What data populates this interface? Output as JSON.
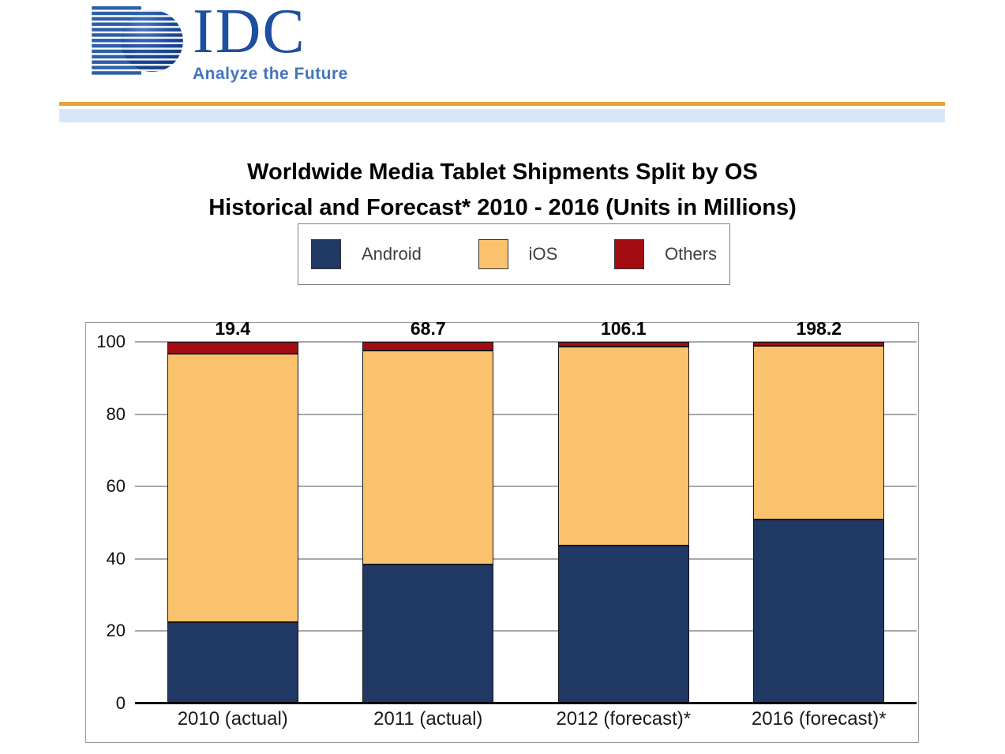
{
  "logo": {
    "text": "IDC",
    "tagline": "Analyze the Future"
  },
  "title": {
    "line1": "Worldwide Media Tablet Shipments Split by OS",
    "line2": "Historical and Forecast* 2010 - 2016 (Units in Millions)"
  },
  "colors": {
    "gold_rule": "#E5A33C",
    "blue_band": "#D8E7F5",
    "idc_blue": "#1E4F9E",
    "tagline_blue": "#4374BE"
  },
  "chart_data": {
    "type": "bar",
    "stacked": true,
    "units": "percent share of total shipments; totals above bars are units in millions",
    "categories": [
      "2010 (actual)",
      "2011 (actual)",
      "2012 (forecast)*",
      "2016 (forecast)*"
    ],
    "totals_millions": [
      "19.4",
      "68.7",
      "106.1",
      "198.2"
    ],
    "series": [
      {
        "name": "Android",
        "color": "#1F3864",
        "values": [
          22.5,
          38.5,
          43.7,
          50.9
        ]
      },
      {
        "name": "iOS",
        "color": "#FBC26D",
        "values": [
          74.3,
          59.1,
          55.1,
          48.1
        ]
      },
      {
        "name": "Others",
        "color": "#A30D12",
        "values": [
          3.2,
          2.4,
          1.2,
          1.0
        ]
      }
    ],
    "y_ticks": [
      0,
      20,
      40,
      60,
      80,
      100
    ],
    "ylim": [
      0,
      100
    ],
    "legend_position": "top",
    "grid": true
  }
}
